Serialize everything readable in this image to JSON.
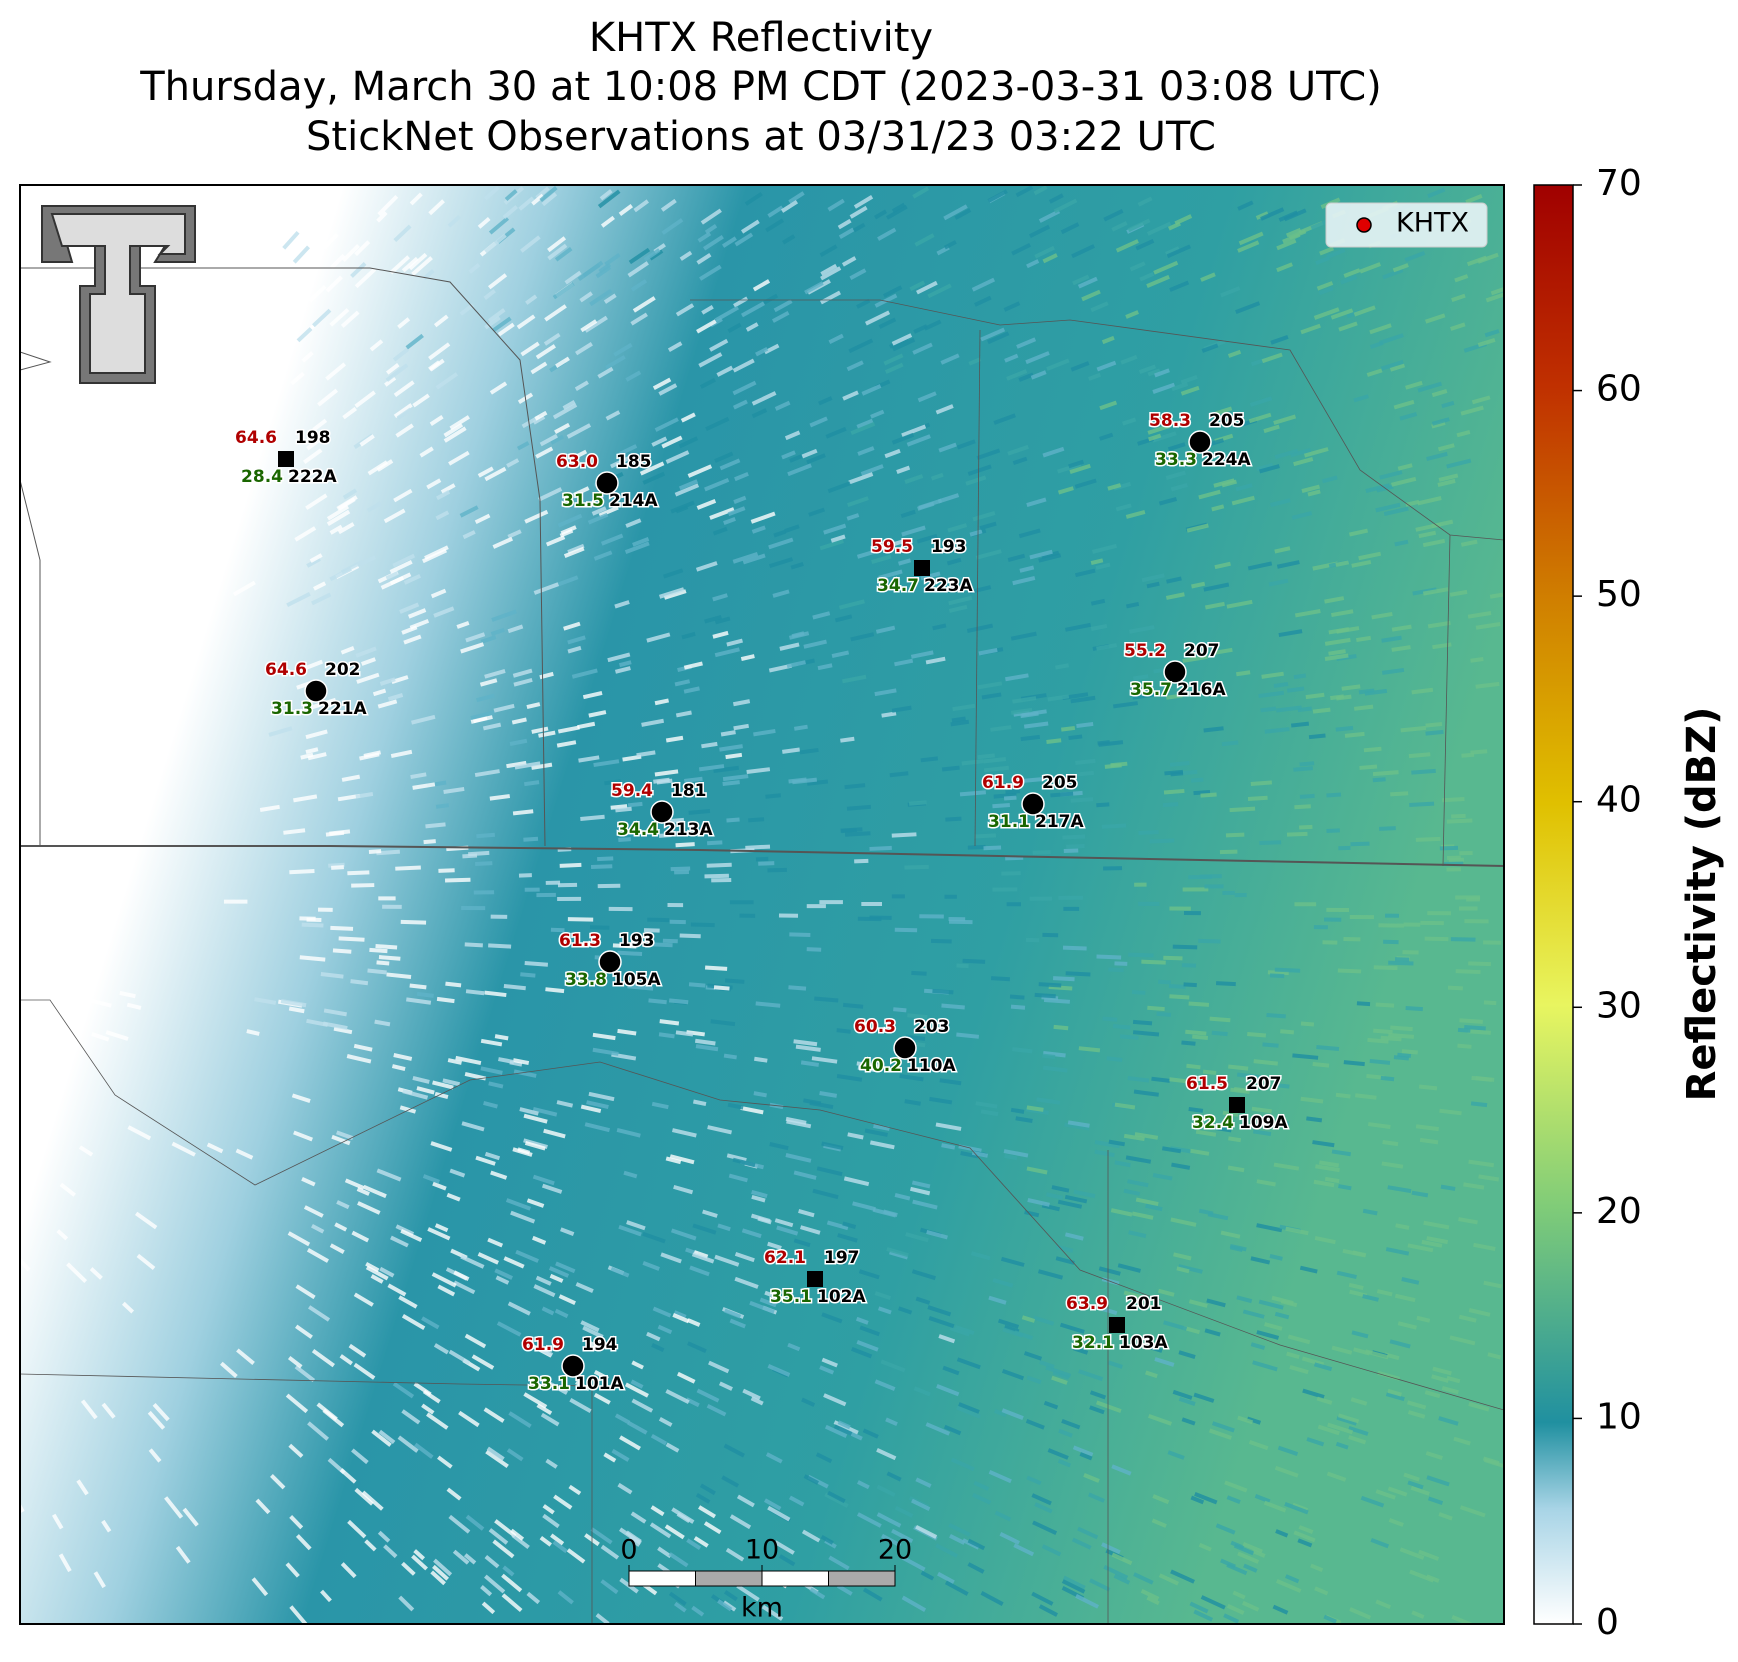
{
  "title_lines": [
    "KHTX Reflectivity",
    "Thursday, March 30 at 10:08 PM CDT (2023-03-31 03:08 UTC)",
    "StickNet Observations at 03/31/23 03:22 UTC"
  ],
  "legend": {
    "label": "KHTX",
    "color": "#e00000"
  },
  "colorbar": {
    "label": "Reflectivity (dBZ)",
    "lim": [
      0,
      70
    ],
    "ticks": [
      0,
      10,
      20,
      30,
      40,
      50,
      60,
      70
    ]
  },
  "temperature_color": "#b00000",
  "dewpoint_color": "#1a6600",
  "stations": [
    {
      "id": "222A",
      "temperature": "64.6",
      "dewpoint": "28.4",
      "value": "198",
      "marker": "square"
    },
    {
      "id": "214A",
      "temperature": "63.0",
      "dewpoint": "31.5",
      "value": "185",
      "marker": "circle"
    },
    {
      "id": "224A",
      "temperature": "58.3",
      "dewpoint": "33.3",
      "value": "205",
      "marker": "circle"
    },
    {
      "id": "223A",
      "temperature": "59.5",
      "dewpoint": "34.7",
      "value": "193",
      "marker": "square"
    },
    {
      "id": "221A",
      "temperature": "64.6",
      "dewpoint": "31.3",
      "value": "202",
      "marker": "circle"
    },
    {
      "id": "216A",
      "temperature": "55.2",
      "dewpoint": "35.7",
      "value": "207",
      "marker": "circle"
    },
    {
      "id": "213A",
      "temperature": "59.4",
      "dewpoint": "34.4",
      "value": "181",
      "marker": "circle"
    },
    {
      "id": "217A",
      "temperature": "61.9",
      "dewpoint": "31.1",
      "value": "205",
      "marker": "circle"
    },
    {
      "id": "105A",
      "temperature": "61.3",
      "dewpoint": "33.8",
      "value": "193",
      "marker": "circle"
    },
    {
      "id": "110A",
      "temperature": "60.3",
      "dewpoint": "40.2",
      "value": "203",
      "marker": "circle"
    },
    {
      "id": "109A",
      "temperature": "61.5",
      "dewpoint": "32.4",
      "value": "207",
      "marker": "square"
    },
    {
      "id": "102A",
      "temperature": "62.1",
      "dewpoint": "35.1",
      "value": "197",
      "marker": "square"
    },
    {
      "id": "103A",
      "temperature": "63.9",
      "dewpoint": "32.1",
      "value": "201",
      "marker": "square"
    },
    {
      "id": "101A",
      "temperature": "61.9",
      "dewpoint": "33.1",
      "value": "194",
      "marker": "circle"
    }
  ],
  "scale_bar": {
    "ticks": [
      0,
      10,
      20
    ],
    "unit": "km"
  }
}
